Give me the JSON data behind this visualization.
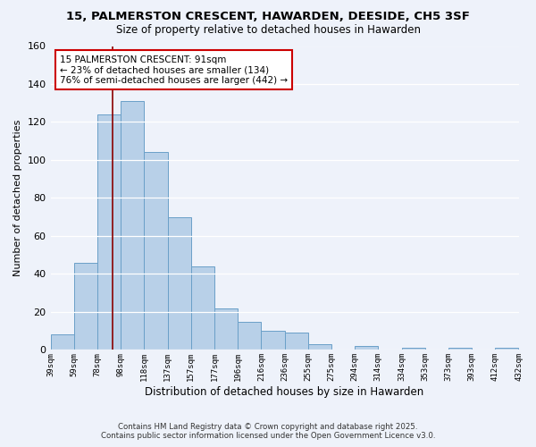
{
  "title": "15, PALMERSTON CRESCENT, HAWARDEN, DEESIDE, CH5 3SF",
  "subtitle": "Size of property relative to detached houses in Hawarden",
  "xlabel": "Distribution of detached houses by size in Hawarden",
  "ylabel": "Number of detached properties",
  "bar_values": [
    8,
    46,
    124,
    131,
    104,
    70,
    44,
    22,
    15,
    10,
    9,
    3,
    0,
    2,
    0,
    1,
    0,
    1,
    0,
    1
  ],
  "bin_labels": [
    "39sqm",
    "59sqm",
    "78sqm",
    "98sqm",
    "118sqm",
    "137sqm",
    "157sqm",
    "177sqm",
    "196sqm",
    "216sqm",
    "236sqm",
    "255sqm",
    "275sqm",
    "294sqm",
    "314sqm",
    "334sqm",
    "353sqm",
    "373sqm",
    "393sqm",
    "412sqm",
    "432sqm"
  ],
  "bar_color": "#b8d0e8",
  "bar_edge_color": "#6aa0c8",
  "ref_line_x": 2.65,
  "ref_line_color": "#8b0000",
  "annotation_lines": [
    "15 PALMERSTON CRESCENT: 91sqm",
    "← 23% of detached houses are smaller (134)",
    "76% of semi-detached houses are larger (442) →"
  ],
  "ylim": [
    0,
    160
  ],
  "yticks": [
    0,
    20,
    40,
    60,
    80,
    100,
    120,
    140,
    160
  ],
  "footer_line1": "Contains HM Land Registry data © Crown copyright and database right 2025.",
  "footer_line2": "Contains public sector information licensed under the Open Government Licence v3.0.",
  "bg_color": "#eef2fa",
  "plot_bg_color": "#eef2fa"
}
